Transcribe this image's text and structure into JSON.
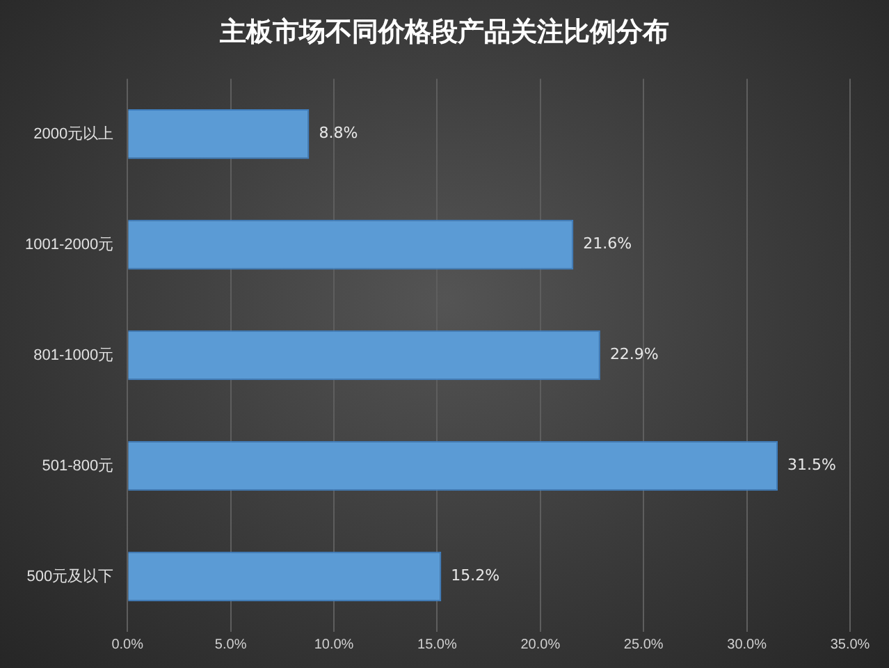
{
  "chart_data": {
    "type": "bar",
    "orientation": "horizontal",
    "title": "主板市场不同价格段产品关注比例分布",
    "categories": [
      "2000元以上",
      "1001-2000元",
      "801-1000元",
      "501-800元",
      "500元及以下"
    ],
    "values": [
      8.8,
      21.6,
      22.9,
      31.5,
      15.2
    ],
    "color": "#5b9bd5",
    "xlim": [
      0,
      35
    ],
    "xticks": [
      {
        "value": 0,
        "label": "0.0%"
      },
      {
        "value": 5,
        "label": "5.0%"
      },
      {
        "value": 10,
        "label": "10.0%"
      },
      {
        "value": 15,
        "label": "15.0%"
      },
      {
        "value": 20,
        "label": "20.0%"
      },
      {
        "value": 25,
        "label": "25.0%"
      },
      {
        "value": 30,
        "label": "30.0%"
      },
      {
        "value": 35,
        "label": "35.0%"
      }
    ],
    "value_labels": [
      "8.8%",
      "21.6%",
      "22.9%",
      "31.5%",
      "15.2%"
    ],
    "grid": "x",
    "legend": false
  }
}
